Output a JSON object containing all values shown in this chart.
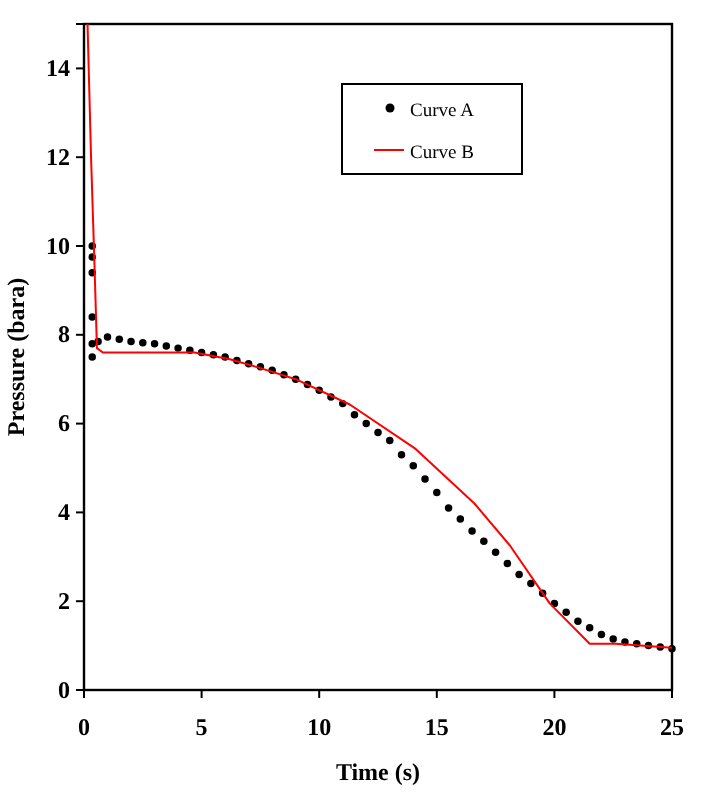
{
  "chart_data": {
    "type": "scatter",
    "xlabel": "Time  (s)",
    "ylabel": "Pressure  (bara)",
    "xlim": [
      0,
      25
    ],
    "xticks": [
      0,
      5,
      10,
      15,
      20,
      25
    ],
    "ylim": [
      0,
      15
    ],
    "yticks": [
      0,
      2,
      4,
      6,
      8,
      10,
      12,
      14
    ],
    "grid": false,
    "legend": "top right",
    "series": [
      {
        "name": "Curve A",
        "marker": "circle",
        "color": "#000000",
        "x": [
          0.35,
          0.35,
          0.35,
          0.35,
          0.35,
          0.35,
          0.6,
          1,
          1.5,
          2,
          2.5,
          3,
          3.5,
          4,
          4.5,
          5,
          5.5,
          6,
          6.5,
          7,
          7.5,
          8,
          8.5,
          9,
          9.5,
          10,
          10.5,
          11,
          11.5,
          12,
          12.5,
          13,
          13.5,
          14,
          14.5,
          15,
          15.5,
          16,
          16.5,
          17,
          17.5,
          18,
          18.5,
          19,
          19.5,
          20,
          20.5,
          21,
          21.5,
          22,
          22.5,
          23,
          23.5,
          24,
          24.5,
          25
        ],
        "values": [
          7.5,
          7.8,
          8.4,
          9.4,
          9.75,
          10.0,
          7.85,
          7.95,
          7.9,
          7.85,
          7.82,
          7.8,
          7.75,
          7.7,
          7.65,
          7.6,
          7.55,
          7.5,
          7.42,
          7.35,
          7.28,
          7.2,
          7.1,
          7.0,
          6.88,
          6.75,
          6.6,
          6.45,
          6.2,
          6.0,
          5.8,
          5.62,
          5.3,
          5.05,
          4.75,
          4.45,
          4.1,
          3.85,
          3.58,
          3.35,
          3.1,
          2.85,
          2.6,
          2.4,
          2.18,
          1.95,
          1.75,
          1.55,
          1.4,
          1.25,
          1.15,
          1.08,
          1.04,
          1.0,
          0.97,
          0.93
        ]
      },
      {
        "name": "Curve B",
        "type": "line",
        "marker": "none",
        "line_style": "solid",
        "color": "#ff0000",
        "x": [
          0.15,
          0.3,
          0.45,
          0.55,
          0.8,
          4.7,
          6.2,
          7.5,
          9,
          11.3,
          14.1,
          16.6,
          18.1,
          19.8,
          21.5,
          22.6,
          25
        ],
        "values": [
          15,
          12,
          9.5,
          7.7,
          7.6,
          7.6,
          7.45,
          7.25,
          7.0,
          6.43,
          5.43,
          4.2,
          3.26,
          1.95,
          1.04,
          1.04,
          0.95
        ]
      }
    ]
  }
}
